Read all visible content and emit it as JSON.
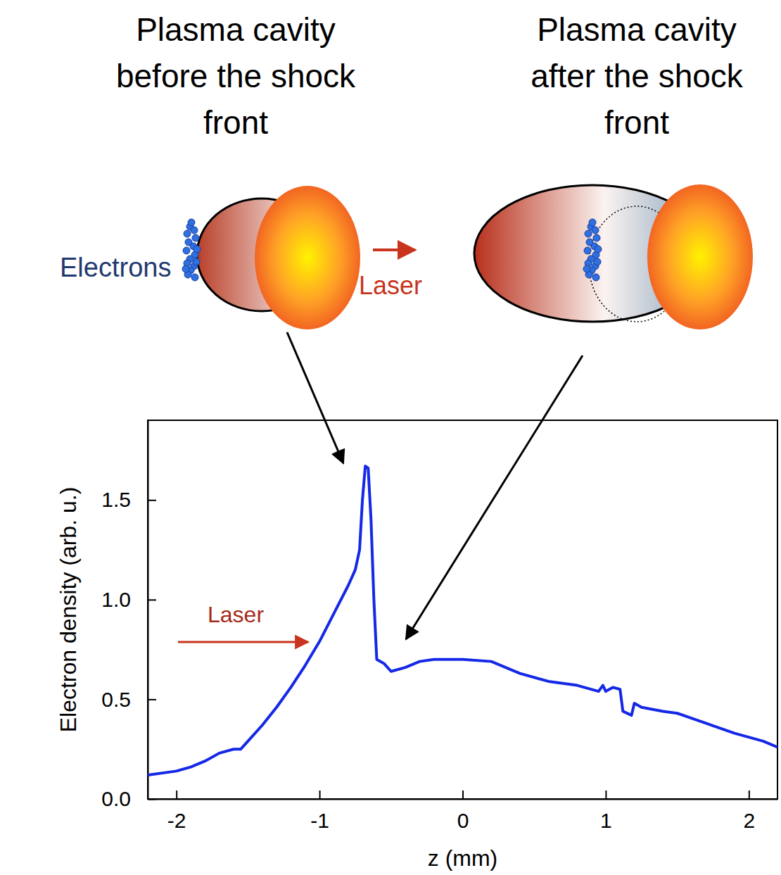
{
  "diagram": {
    "titles": [
      "Plasma cavity before the shock front",
      "Plasma cavity after the shock front"
    ],
    "electrons_label": "Electrons",
    "laser_label": "Laser"
  },
  "chart_data": {
    "type": "line",
    "x_label": "z (mm)",
    "y_label": "Electron density (arb. u.)",
    "annotations": [
      "Laser"
    ],
    "color": "#1428e6",
    "x": [
      -2.2,
      -2.0,
      -1.9,
      -1.8,
      -1.7,
      -1.6,
      -1.55,
      -1.5,
      -1.4,
      -1.3,
      -1.2,
      -1.1,
      -1.0,
      -0.9,
      -0.8,
      -0.75,
      -0.72,
      -0.7,
      -0.68,
      -0.66,
      -0.64,
      -0.62,
      -0.6,
      -0.55,
      -0.5,
      -0.4,
      -0.3,
      -0.2,
      0.0,
      0.2,
      0.4,
      0.6,
      0.8,
      0.95,
      0.98,
      1.0,
      1.05,
      1.1,
      1.12,
      1.18,
      1.2,
      1.25,
      1.4,
      1.5,
      1.7,
      1.9,
      2.1,
      2.2
    ],
    "values": [
      0.12,
      0.14,
      0.16,
      0.19,
      0.23,
      0.25,
      0.25,
      0.29,
      0.37,
      0.46,
      0.56,
      0.67,
      0.79,
      0.93,
      1.07,
      1.15,
      1.25,
      1.5,
      1.67,
      1.66,
      1.4,
      1.0,
      0.7,
      0.68,
      0.64,
      0.66,
      0.69,
      0.7,
      0.7,
      0.69,
      0.63,
      0.59,
      0.57,
      0.54,
      0.57,
      0.54,
      0.56,
      0.55,
      0.44,
      0.42,
      0.48,
      0.46,
      0.44,
      0.43,
      0.38,
      0.33,
      0.29,
      0.26
    ],
    "xlim": [
      -2.2,
      2.2
    ],
    "xticks": [
      -2,
      -1,
      0,
      1,
      2
    ],
    "ylim": [
      0,
      1.9
    ],
    "yticks": [
      {
        "value": 0,
        "label": "0.0"
      },
      0.5,
      {
        "value": 1,
        "label": "1.0"
      },
      1.5
    ],
    "grid": false
  }
}
